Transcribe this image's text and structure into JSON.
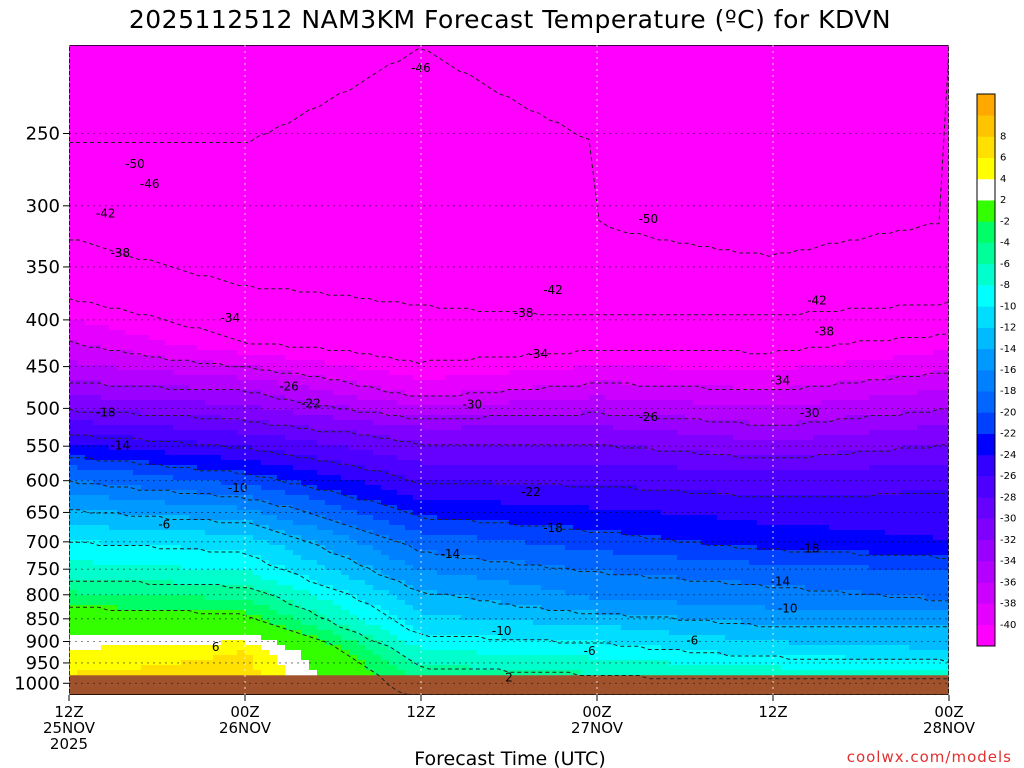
{
  "chart_data": {
    "type": "heatmap",
    "title": "2025112512 NAM3KM Forecast Temperature (ºC) for KDVN",
    "xlabel": "Forecast Time (UTC)",
    "ylabel": "",
    "y_scale": "log-pressure",
    "y_ticks": [
      250,
      300,
      350,
      400,
      450,
      500,
      550,
      600,
      650,
      700,
      750,
      800,
      850,
      900,
      950,
      1000
    ],
    "ylim": [
      1030,
      200
    ],
    "x_hours": [
      0,
      12,
      24,
      36,
      48,
      60
    ],
    "x_tick_labels": [
      {
        "line1": "12Z",
        "line2": "25NOV",
        "line3": "2025"
      },
      {
        "line1": "00Z",
        "line2": "26NOV",
        "line3": ""
      },
      {
        "line1": "12Z",
        "line2": "",
        "line3": ""
      },
      {
        "line1": "00Z",
        "line2": "27NOV",
        "line3": ""
      },
      {
        "line1": "12Z",
        "line2": "",
        "line3": ""
      },
      {
        "line1": "00Z",
        "line2": "28NOV",
        "line3": ""
      }
    ],
    "grid": true,
    "ground_level_hpa": 980,
    "colorbar": {
      "levels": [
        -42,
        -40,
        -38,
        -36,
        -34,
        -32,
        -30,
        -28,
        -26,
        -24,
        -22,
        -20,
        -18,
        -16,
        -14,
        -12,
        -10,
        -8,
        -6,
        -4,
        -2,
        2,
        4,
        6,
        8,
        10
      ],
      "colors": [
        "#ff00ff",
        "#e600ff",
        "#cc00ff",
        "#b300ff",
        "#9900ff",
        "#8000ff",
        "#6600ff",
        "#4d00ff",
        "#3300ff",
        "#0000ff",
        "#0040ff",
        "#0066ff",
        "#0080ff",
        "#0099ff",
        "#00bbff",
        "#00ddff",
        "#00ffff",
        "#00ffcc",
        "#00ff99",
        "#00ff66",
        "#33ff00",
        "#ffffff",
        "#ffff00",
        "#ffe000",
        "#ffc400",
        "#ffa800"
      ],
      "tick_labels": [
        "-40",
        "-38",
        "-36",
        "-34",
        "-32",
        "-30",
        "-28",
        "-26",
        "-24",
        "-22",
        "-20",
        "-18",
        "-16",
        "-14",
        "-12",
        "-10",
        "-8",
        "-6",
        "-4",
        "-2",
        "2",
        "4",
        "6",
        "8"
      ]
    },
    "series": [
      {
        "values": [
          [
            0,
            -51
          ],
          [
            12,
            -51
          ],
          [
            24,
            -50
          ],
          [
            36,
            -51
          ],
          [
            48,
            -51
          ],
          [
            60,
            -50
          ]
        ]
      },
      {
        "values": [
          [
            0,
            -50
          ],
          [
            12,
            -50
          ],
          [
            24,
            -49
          ],
          [
            36,
            -50
          ],
          [
            48,
            -51
          ],
          [
            60,
            -50
          ]
        ]
      },
      {
        "values": [
          [
            0,
            -47
          ],
          [
            12,
            -50
          ],
          [
            24,
            -47
          ],
          [
            36,
            -50
          ],
          [
            48,
            -51
          ],
          [
            60,
            -50
          ]
        ]
      },
      {
        "values": [
          [
            0,
            -43
          ],
          [
            12,
            -46
          ],
          [
            24,
            -47
          ],
          [
            36,
            -49
          ],
          [
            48,
            -49
          ],
          [
            60,
            -48
          ]
        ]
      },
      {
        "values": [
          [
            0,
            -38
          ],
          [
            12,
            -42
          ],
          [
            24,
            -44
          ],
          [
            36,
            -43
          ],
          [
            48,
            -43
          ],
          [
            60,
            -41
          ]
        ]
      },
      {
        "values": [
          [
            0,
            -33
          ],
          [
            12,
            -34
          ],
          [
            24,
            -39
          ],
          [
            36,
            -37
          ],
          [
            48,
            -38
          ],
          [
            60,
            -36
          ]
        ]
      },
      {
        "values": [
          [
            0,
            -26
          ],
          [
            12,
            -28
          ],
          [
            24,
            -31
          ],
          [
            36,
            -31
          ],
          [
            48,
            -33
          ],
          [
            60,
            -31
          ]
        ]
      },
      {
        "values": [
          [
            0,
            -19
          ],
          [
            12,
            -22
          ],
          [
            24,
            -27
          ],
          [
            36,
            -27
          ],
          [
            48,
            -28
          ],
          [
            60,
            -27
          ]
        ]
      },
      {
        "values": [
          [
            0,
            -14
          ],
          [
            12,
            -16
          ],
          [
            24,
            -23
          ],
          [
            36,
            -24
          ],
          [
            48,
            -25
          ],
          [
            60,
            -25
          ]
        ]
      },
      {
        "values": [
          [
            0,
            -10
          ],
          [
            12,
            -11
          ],
          [
            24,
            -19
          ],
          [
            36,
            -21
          ],
          [
            48,
            -23
          ],
          [
            60,
            -24
          ]
        ]
      },
      {
        "values": [
          [
            0,
            -7
          ],
          [
            12,
            -8
          ],
          [
            24,
            -16
          ],
          [
            36,
            -18
          ],
          [
            48,
            -19
          ],
          [
            60,
            -20
          ]
        ]
      },
      {
        "values": [
          [
            0,
            -3
          ],
          [
            12,
            -4
          ],
          [
            24,
            -13
          ],
          [
            36,
            -16
          ],
          [
            48,
            -17
          ],
          [
            60,
            -18
          ]
        ]
      },
      {
        "values": [
          [
            0,
            1
          ],
          [
            12,
            0
          ],
          [
            24,
            -11
          ],
          [
            36,
            -12
          ],
          [
            48,
            -14
          ],
          [
            60,
            -14
          ]
        ]
      },
      {
        "values": [
          [
            0,
            4
          ],
          [
            12,
            6
          ],
          [
            24,
            -8
          ],
          [
            36,
            -9
          ],
          [
            48,
            -11
          ],
          [
            60,
            -12
          ]
        ]
      },
      {
        "values": [
          [
            0,
            6
          ],
          [
            12,
            7
          ],
          [
            24,
            -5
          ],
          [
            36,
            -6
          ],
          [
            48,
            -7
          ],
          [
            60,
            -7
          ]
        ]
      },
      {
        "values": [
          [
            0,
            7
          ],
          [
            12,
            3
          ],
          [
            24,
            -2
          ],
          [
            36,
            -4
          ],
          [
            48,
            -3
          ],
          [
            60,
            -2
          ]
        ]
      }
    ],
    "contour_labels": [
      {
        "text": "-46",
        "x": 24,
        "p": 212
      },
      {
        "text": "-50",
        "x": 4.5,
        "p": 270
      },
      {
        "text": "-46",
        "x": 5.5,
        "p": 284
      },
      {
        "text": "-42",
        "x": 2.5,
        "p": 306
      },
      {
        "text": "-38",
        "x": 3.5,
        "p": 338
      },
      {
        "text": "-50",
        "x": 39.5,
        "p": 310
      },
      {
        "text": "-42",
        "x": 33,
        "p": 371
      },
      {
        "text": "-42",
        "x": 51,
        "p": 381
      },
      {
        "text": "-38",
        "x": 31,
        "p": 393
      },
      {
        "text": "-38",
        "x": 51.5,
        "p": 412
      },
      {
        "text": "-34",
        "x": 11,
        "p": 398
      },
      {
        "text": "-34",
        "x": 32,
        "p": 436
      },
      {
        "text": "-34",
        "x": 48.5,
        "p": 466
      },
      {
        "text": "-26",
        "x": 15,
        "p": 473
      },
      {
        "text": "-22",
        "x": 16.5,
        "p": 494
      },
      {
        "text": "-30",
        "x": 27.5,
        "p": 495
      },
      {
        "text": "-26",
        "x": 39.5,
        "p": 511
      },
      {
        "text": "-30",
        "x": 50.5,
        "p": 506
      },
      {
        "text": "-18",
        "x": 2.5,
        "p": 505
      },
      {
        "text": "-14",
        "x": 3.5,
        "p": 549
      },
      {
        "text": "-10",
        "x": 11.5,
        "p": 611
      },
      {
        "text": "-22",
        "x": 31.5,
        "p": 617
      },
      {
        "text": "-6",
        "x": 6.5,
        "p": 670
      },
      {
        "text": "-18",
        "x": 33,
        "p": 676
      },
      {
        "text": "-14",
        "x": 26,
        "p": 722
      },
      {
        "text": "-18",
        "x": 50.5,
        "p": 712
      },
      {
        "text": "-14",
        "x": 48.5,
        "p": 774
      },
      {
        "text": "-10",
        "x": 49,
        "p": 828
      },
      {
        "text": "-10",
        "x": 29.5,
        "p": 877
      },
      {
        "text": "6",
        "x": 10,
        "p": 913
      },
      {
        "text": "-6",
        "x": 35.5,
        "p": 922
      },
      {
        "text": "-6",
        "x": 42.5,
        "p": 898
      },
      {
        "text": "2",
        "x": 30,
        "p": 986
      }
    ]
  },
  "footer": {
    "credit": "coolwx.com/models"
  }
}
